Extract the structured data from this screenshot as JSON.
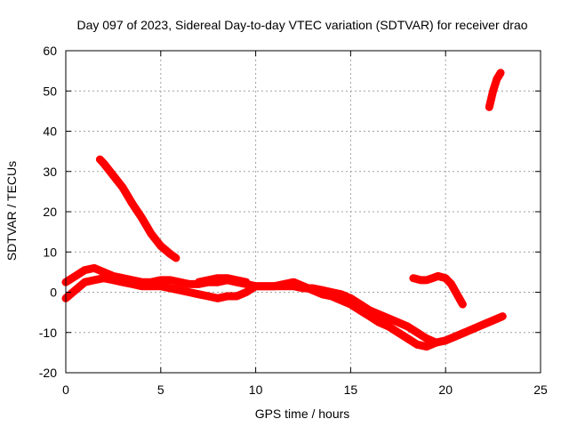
{
  "chart_data": {
    "type": "scatter",
    "title": "Day 097 of 2023, Sidereal Day-to-day VTEC variation (SDTVAR) for receiver drao",
    "xlabel": "GPS time / hours",
    "ylabel": "SDTVAR / TECUs",
    "xlim": [
      0,
      25
    ],
    "ylim": [
      -20,
      60
    ],
    "xticks": [
      0,
      5,
      10,
      15,
      20,
      25
    ],
    "yticks": [
      -20,
      -10,
      0,
      10,
      20,
      30,
      40,
      50,
      60
    ],
    "grid": true,
    "legend": "none",
    "colors": {
      "series": "#ff0000",
      "grid": "#a0a0a0",
      "axes": "#000000"
    },
    "series": [
      {
        "name": "main-band-upper",
        "x": [
          0.0,
          0.5,
          1.0,
          1.5,
          2.0,
          2.5,
          3.0,
          3.5,
          4.0,
          4.5,
          5.0,
          5.5,
          6.0,
          6.5,
          7.0,
          7.5,
          8.0,
          8.5,
          9.0,
          9.5,
          10.0,
          10.5,
          11.0,
          11.5,
          12.0,
          12.5,
          13.0,
          13.5,
          14.0,
          14.5,
          15.0,
          15.5,
          16.0,
          16.5,
          17.0,
          17.5,
          18.0,
          18.5,
          19.0,
          19.5,
          20.0,
          20.5,
          21.0,
          21.5,
          22.0,
          22.5,
          23.0
        ],
        "y": [
          2.5,
          4.0,
          5.5,
          6.0,
          5.0,
          4.0,
          3.5,
          3.0,
          2.5,
          2.5,
          3.0,
          3.0,
          2.5,
          2.0,
          2.0,
          2.5,
          2.5,
          3.0,
          2.5,
          2.0,
          1.5,
          1.5,
          1.5,
          1.5,
          1.5,
          1.0,
          1.0,
          0.5,
          0.0,
          -0.5,
          -1.5,
          -3.0,
          -4.5,
          -5.5,
          -6.5,
          -7.5,
          -8.5,
          -10.0,
          -11.5,
          -12.5,
          -12.0,
          -11.0,
          -10.0,
          -9.0,
          -8.0,
          -7.0,
          -6.0
        ]
      },
      {
        "name": "main-band-lower",
        "x": [
          0.0,
          0.5,
          1.0,
          1.5,
          2.0,
          2.5,
          3.0,
          3.5,
          4.0,
          4.5,
          5.0,
          5.5,
          6.0,
          6.5,
          7.0,
          7.5,
          8.0,
          8.5,
          9.0,
          9.5,
          10.0,
          10.5,
          11.0,
          11.5,
          12.0,
          12.5,
          13.0,
          13.5,
          14.0,
          14.5,
          15.0,
          15.5,
          16.0,
          16.5,
          17.0,
          17.5,
          18.0,
          18.5,
          19.0,
          19.5
        ],
        "y": [
          -1.5,
          0.5,
          2.5,
          3.0,
          3.5,
          3.0,
          2.5,
          2.0,
          1.5,
          1.5,
          1.5,
          1.0,
          0.5,
          0.0,
          -0.5,
          -1.0,
          -1.5,
          -1.0,
          -1.0,
          0.0,
          1.5,
          1.5,
          1.5,
          2.0,
          2.5,
          1.5,
          0.5,
          -0.5,
          -1.0,
          -2.0,
          -3.0,
          -4.5,
          -6.0,
          -7.5,
          -8.5,
          -10.0,
          -11.5,
          -13.0,
          -13.5,
          -12.5
        ]
      },
      {
        "name": "mid-segment",
        "x": [
          7.0,
          7.5,
          8.0,
          8.5,
          9.0,
          9.5
        ],
        "y": [
          2.5,
          3.0,
          3.5,
          3.5,
          3.0,
          2.5
        ]
      },
      {
        "name": "early-descending",
        "x": [
          1.8,
          2.0,
          2.5,
          3.0,
          3.5,
          4.0,
          4.5,
          5.0,
          5.5,
          5.8
        ],
        "y": [
          33.0,
          32.0,
          29.0,
          26.0,
          22.0,
          18.5,
          14.5,
          11.5,
          9.5,
          8.5
        ]
      },
      {
        "name": "late-arc",
        "x": [
          18.3,
          18.7,
          19.0,
          19.3,
          19.6,
          20.0,
          20.3,
          20.6,
          20.9
        ],
        "y": [
          3.5,
          3.0,
          3.0,
          3.5,
          4.0,
          3.5,
          2.0,
          -0.5,
          -3.0
        ]
      },
      {
        "name": "end-rising",
        "x": [
          22.3,
          22.5,
          22.7,
          22.9
        ],
        "y": [
          46.0,
          50.0,
          53.0,
          54.5
        ]
      }
    ]
  }
}
